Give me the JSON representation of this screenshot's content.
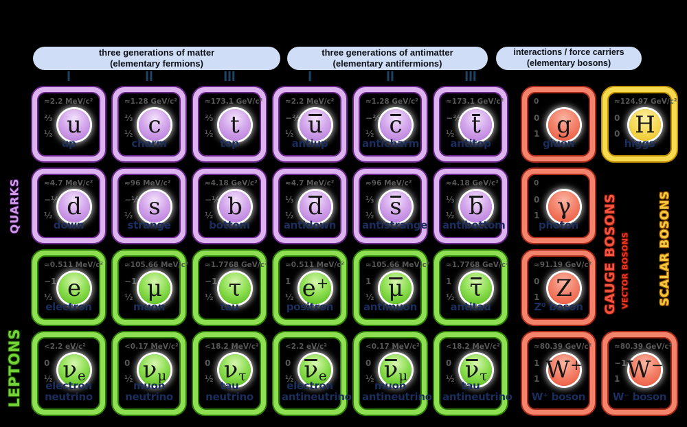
{
  "band_color": "#cfdef6",
  "header_text_color": "#0d1118",
  "generation_color": "#1d4465",
  "name_color": "#1b2d5c",
  "stats_color": "#575757",
  "symbol_color": "#161616",
  "headers": [
    {
      "line1": "three generations of matter",
      "line2": "(elementary fermions)"
    },
    {
      "line1": "three generations of antimatter",
      "line2": "(elementary antifermions)"
    },
    {
      "line1": "interactions / force carriers",
      "line2": "(elementary bosons)"
    }
  ],
  "generations": [
    "I",
    "II",
    "III",
    "I",
    "II",
    "III"
  ],
  "side_labels": {
    "quarks": {
      "text": "QUARKS",
      "color": "#cf9be8",
      "outline": "#321048"
    },
    "leptons": {
      "text": "LEPTONS",
      "color": "#74d437",
      "outline": "#1c4a04"
    },
    "gauge_bosons": {
      "text": "GAUGE BOSONS",
      "color": "#f45540",
      "outline": "#6f1207"
    },
    "vector_bosons": {
      "text": "VECTOR BOSONS",
      "color": "#ee3c22",
      "outline": "#580a02"
    },
    "scalar_bosons": {
      "text": "SCALAR BOSONS",
      "color": "#f6c93e",
      "outline": "#9a5800"
    }
  },
  "categories": {
    "quark": {
      "light": "#dcb3ee",
      "dark": "#68258a",
      "orb_hi": "#f3e3fb",
      "orb_mid": "#d4a8ec",
      "orb_lo": "#b272d8"
    },
    "lepton": {
      "light": "#8fdf52",
      "dark": "#2e7c08",
      "orb_hi": "#d9f6b2",
      "orb_mid": "#90e055",
      "orb_lo": "#4fb611"
    },
    "gauge": {
      "light": "#f4836c",
      "dark": "#a6291a",
      "orb_hi": "#fab5a4",
      "orb_mid": "#f3836c",
      "orb_lo": "#eb5134"
    },
    "scalar": {
      "light": "#f7da50",
      "dark": "#c09202",
      "orb_hi": "#fcf0a6",
      "orb_mid": "#f7dc5e",
      "orb_lo": "#edc01a"
    }
  },
  "particles": [
    {
      "id": "up",
      "name": "up",
      "symbol": {
        "base": "u"
      },
      "mass": "≈2.2 MeV/c²",
      "charge": "⅔",
      "spin": "½",
      "category": "quark",
      "row": 1,
      "col": 1
    },
    {
      "id": "charm",
      "name": "charm",
      "symbol": {
        "base": "c"
      },
      "mass": "≈1.28 GeV/c²",
      "charge": "⅔",
      "spin": "½",
      "category": "quark",
      "row": 1,
      "col": 2
    },
    {
      "id": "top",
      "name": "top",
      "symbol": {
        "base": "t"
      },
      "mass": "≈173.1 GeV/c²",
      "charge": "⅔",
      "spin": "½",
      "category": "quark",
      "row": 1,
      "col": 3
    },
    {
      "id": "antiup",
      "name": "antiup",
      "symbol": {
        "base": "u",
        "over": true
      },
      "mass": "≈2.2 MeV/c²",
      "charge": "−⅔",
      "spin": "½",
      "category": "quark",
      "row": 1,
      "col": 4
    },
    {
      "id": "anticharm",
      "name": "anticharm",
      "symbol": {
        "base": "c",
        "over": true
      },
      "mass": "≈1.28 GeV/c²",
      "charge": "−⅔",
      "spin": "½",
      "category": "quark",
      "row": 1,
      "col": 5
    },
    {
      "id": "antitop",
      "name": "antitop",
      "symbol": {
        "base": "t",
        "over": true
      },
      "mass": "≈173.1 GeV/c²",
      "charge": "−⅔",
      "spin": "½",
      "category": "quark",
      "row": 1,
      "col": 6
    },
    {
      "id": "down",
      "name": "down",
      "symbol": {
        "base": "d"
      },
      "mass": "≈4.7 MeV/c²",
      "charge": "−⅓",
      "spin": "½",
      "category": "quark",
      "row": 2,
      "col": 1
    },
    {
      "id": "strange",
      "name": "strange",
      "symbol": {
        "base": "s"
      },
      "mass": "≈96 MeV/c²",
      "charge": "−⅓",
      "spin": "½",
      "category": "quark",
      "row": 2,
      "col": 2
    },
    {
      "id": "bottom",
      "name": "bottom",
      "symbol": {
        "base": "b"
      },
      "mass": "≈4.18 GeV/c²",
      "charge": "−⅓",
      "spin": "½",
      "category": "quark",
      "row": 2,
      "col": 3
    },
    {
      "id": "antidown",
      "name": "antidown",
      "symbol": {
        "base": "d",
        "over": true
      },
      "mass": "≈4.7 MeV/c²",
      "charge": "⅓",
      "spin": "½",
      "category": "quark",
      "row": 2,
      "col": 4
    },
    {
      "id": "antistrange",
      "name": "antistrange",
      "symbol": {
        "base": "s",
        "over": true
      },
      "mass": "≈96 MeV/c²",
      "charge": "⅓",
      "spin": "½",
      "category": "quark",
      "row": 2,
      "col": 5
    },
    {
      "id": "antibottom",
      "name": "antibottom",
      "symbol": {
        "base": "b",
        "over": true
      },
      "mass": "≈4.18 GeV/c²",
      "charge": "⅓",
      "spin": "½",
      "category": "quark",
      "row": 2,
      "col": 6
    },
    {
      "id": "electron",
      "name": "electron",
      "symbol": {
        "base": "e"
      },
      "mass": "≈0.511 MeV/c²",
      "charge": "−1",
      "spin": "½",
      "category": "lepton",
      "row": 3,
      "col": 1
    },
    {
      "id": "muon",
      "name": "muon",
      "symbol": {
        "base": "μ"
      },
      "mass": "≈105.66 MeV/c²",
      "charge": "−1",
      "spin": "½",
      "category": "lepton",
      "row": 3,
      "col": 2
    },
    {
      "id": "tau",
      "name": "tau",
      "symbol": {
        "base": "τ"
      },
      "mass": "≈1.7768 GeV/c²",
      "charge": "−1",
      "spin": "½",
      "category": "lepton",
      "row": 3,
      "col": 3
    },
    {
      "id": "positron",
      "name": "positron",
      "symbol": {
        "base": "e",
        "sup": "+"
      },
      "mass": "≈0.511 MeV/c²",
      "charge": "1",
      "spin": "½",
      "category": "lepton",
      "row": 3,
      "col": 4
    },
    {
      "id": "antimuon",
      "name": "antimuon",
      "symbol": {
        "base": "μ",
        "over": true
      },
      "mass": "≈105.66 MeV/c²",
      "charge": "1",
      "spin": "½",
      "category": "lepton",
      "row": 3,
      "col": 5
    },
    {
      "id": "antitau",
      "name": "antitau",
      "symbol": {
        "base": "τ",
        "over": true
      },
      "mass": "≈1.7768 GeV/c²",
      "charge": "1",
      "spin": "½",
      "category": "lepton",
      "row": 3,
      "col": 6
    },
    {
      "id": "electron-neutrino",
      "name": "electron neutrino",
      "symbol": {
        "base": "ν",
        "sub": "e"
      },
      "mass": "<2.2 eV/c²",
      "charge": "0",
      "spin": "½",
      "category": "lepton",
      "row": 4,
      "col": 1
    },
    {
      "id": "muon-neutrino",
      "name": "muon neutrino",
      "symbol": {
        "base": "ν",
        "sub": "μ"
      },
      "mass": "<0.17 MeV/c²",
      "charge": "0",
      "spin": "½",
      "category": "lepton",
      "row": 4,
      "col": 2
    },
    {
      "id": "tau-neutrino",
      "name": "tau neutrino",
      "symbol": {
        "base": "ν",
        "sub": "τ"
      },
      "mass": "<18.2 MeV/c²",
      "charge": "0",
      "spin": "½",
      "category": "lepton",
      "row": 4,
      "col": 3
    },
    {
      "id": "electron-antineutrino",
      "name": "electron antineutrino",
      "symbol": {
        "base": "ν",
        "sub": "e",
        "over": true
      },
      "mass": "<2.2 eV/c²",
      "charge": "0",
      "spin": "½",
      "category": "lepton",
      "row": 4,
      "col": 4
    },
    {
      "id": "muon-antineutrino",
      "name": "muon antineutrino",
      "symbol": {
        "base": "ν",
        "sub": "μ",
        "over": true
      },
      "mass": "<0.17 MeV/c²",
      "charge": "0",
      "spin": "½",
      "category": "lepton",
      "row": 4,
      "col": 5
    },
    {
      "id": "tau-antineutrino",
      "name": "tau antineutrino",
      "symbol": {
        "base": "ν",
        "sub": "τ",
        "over": true
      },
      "mass": "<18.2 MeV/c²",
      "charge": "0",
      "spin": "½",
      "category": "lepton",
      "row": 4,
      "col": 6
    },
    {
      "id": "gluon",
      "name": "gluon",
      "symbol": {
        "base": "g"
      },
      "mass": "0",
      "charge": "0",
      "spin": "1",
      "category": "gauge",
      "row": 1,
      "col": 7
    },
    {
      "id": "photon",
      "name": "photon",
      "symbol": {
        "base": "γ"
      },
      "mass": "0",
      "charge": "0",
      "spin": "1",
      "category": "gauge",
      "row": 2,
      "col": 7
    },
    {
      "id": "z-boson",
      "name": "Z⁰ boson",
      "symbol": {
        "base": "Z"
      },
      "mass": "≈91.19 GeV/c²",
      "charge": "0",
      "spin": "1",
      "category": "gauge",
      "row": 3,
      "col": 7
    },
    {
      "id": "w-plus-boson",
      "name": "W⁺ boson",
      "symbol": {
        "base": "W",
        "sup": "+"
      },
      "mass": "≈80.39 GeV/c²",
      "charge": "1",
      "spin": "1",
      "category": "gauge",
      "row": 4,
      "col": 7
    },
    {
      "id": "w-minus-boson",
      "name": "W⁻ boson",
      "symbol": {
        "base": "W",
        "sup": "−"
      },
      "mass": "≈80.39 GeV/c²",
      "charge": "−1",
      "spin": "1",
      "category": "gauge",
      "row": 4,
      "col": 8
    },
    {
      "id": "higgs",
      "name": "higgs",
      "symbol": {
        "base": "H"
      },
      "mass": "≈124.97 GeV/c²",
      "charge": "0",
      "spin": "0",
      "category": "scalar",
      "row": 1,
      "col": 8
    }
  ]
}
